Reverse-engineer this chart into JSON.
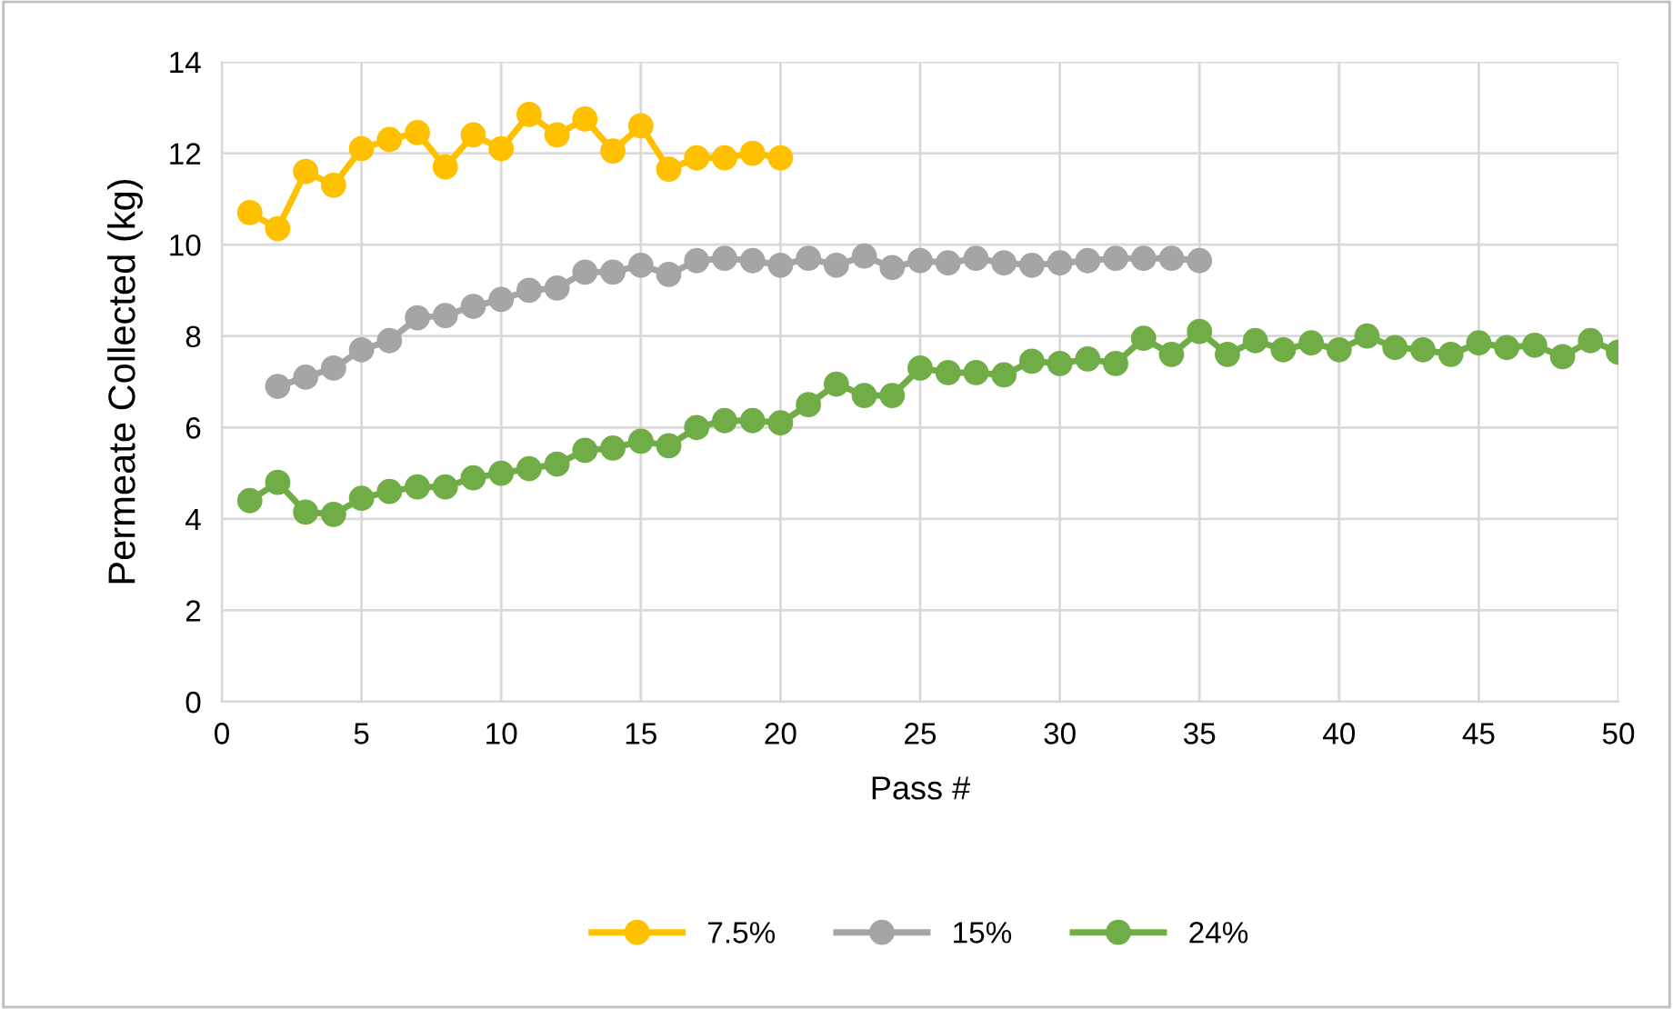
{
  "chart_data": {
    "type": "line",
    "xlabel": "Pass #",
    "ylabel": "Permeate Collected (kg)",
    "xlim": [
      0,
      50
    ],
    "xticks": [
      0,
      5,
      10,
      15,
      20,
      25,
      30,
      35,
      40,
      45,
      50
    ],
    "ylim": [
      0,
      14
    ],
    "yticks": [
      0,
      2,
      4,
      6,
      8,
      10,
      12,
      14
    ],
    "grid": true,
    "legend": "bottom",
    "marker": "circle",
    "line_style": "solid",
    "series": [
      {
        "name": "7.5%",
        "color": "#ffc000",
        "x": [
          1,
          2,
          3,
          4,
          5,
          6,
          7,
          8,
          9,
          10,
          11,
          12,
          13,
          14,
          15,
          16,
          17,
          18,
          19,
          20
        ],
        "values": [
          10.7,
          10.35,
          11.6,
          11.3,
          12.1,
          12.3,
          12.45,
          11.7,
          12.4,
          12.1,
          12.85,
          12.4,
          12.75,
          12.05,
          12.6,
          11.65,
          11.9,
          11.9,
          12.0,
          11.9
        ]
      },
      {
        "name": "15%",
        "color": "#a5a5a5",
        "x": [
          2,
          3,
          4,
          5,
          6,
          7,
          8,
          9,
          10,
          11,
          12,
          13,
          14,
          15,
          16,
          17,
          18,
          19,
          20,
          21,
          22,
          23,
          24,
          25,
          26,
          27,
          28,
          29,
          30,
          31,
          32,
          33,
          34,
          35
        ],
        "values": [
          6.9,
          7.1,
          7.3,
          7.7,
          7.9,
          8.4,
          8.45,
          8.65,
          8.8,
          9.0,
          9.05,
          9.4,
          9.4,
          9.55,
          9.35,
          9.65,
          9.7,
          9.65,
          9.55,
          9.7,
          9.55,
          9.75,
          9.5,
          9.65,
          9.6,
          9.7,
          9.6,
          9.55,
          9.6,
          9.65,
          9.7,
          9.7,
          9.7,
          9.65
        ]
      },
      {
        "name": "24%",
        "color": "#70ad47",
        "x": [
          1,
          2,
          3,
          4,
          5,
          6,
          7,
          8,
          9,
          10,
          11,
          12,
          13,
          14,
          15,
          16,
          17,
          18,
          19,
          20,
          21,
          22,
          23,
          24,
          25,
          26,
          27,
          28,
          29,
          30,
          31,
          32,
          33,
          34,
          35,
          36,
          37,
          38,
          39,
          40,
          41,
          42,
          43,
          44,
          45,
          46,
          47,
          48,
          49,
          50
        ],
        "values": [
          4.4,
          4.8,
          4.15,
          4.1,
          4.45,
          4.6,
          4.7,
          4.7,
          4.9,
          5.0,
          5.1,
          5.2,
          5.5,
          5.55,
          5.7,
          5.6,
          6.0,
          6.15,
          6.15,
          6.1,
          6.5,
          6.95,
          6.7,
          6.7,
          7.3,
          7.2,
          7.2,
          7.15,
          7.45,
          7.4,
          7.5,
          7.4,
          7.95,
          7.6,
          8.1,
          7.6,
          7.9,
          7.7,
          7.85,
          7.7,
          8.0,
          7.75,
          7.7,
          7.6,
          7.85,
          7.75,
          7.8,
          7.55,
          7.9,
          7.65
        ]
      }
    ]
  }
}
